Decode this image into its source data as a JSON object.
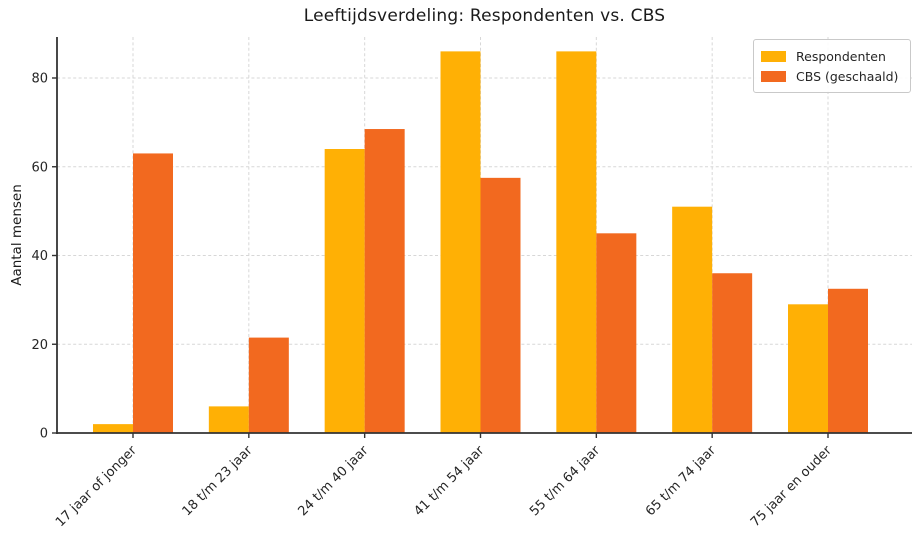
{
  "chart_data": {
    "type": "bar",
    "title": "Leeftijdsverdeling: Respondenten vs. CBS",
    "xlabel": "",
    "ylabel": "Aantal mensen",
    "categories": [
      "17 jaar of jonger",
      "18 t/m 23 jaar",
      "24 t/m 40 jaar",
      "41 t/m 54 jaar",
      "55 t/m 64 jaar",
      "65 t/m 74 jaar",
      "75 jaar en ouder"
    ],
    "series": [
      {
        "name": "Respondenten",
        "color": "#FFB005",
        "values": [
          2,
          6,
          64,
          86,
          86,
          51,
          29
        ]
      },
      {
        "name": "CBS (geschaald)",
        "color": "#F2691F",
        "values": [
          63,
          21.5,
          68.5,
          57.5,
          45,
          36,
          32.5
        ]
      }
    ],
    "yticks": [
      0,
      20,
      40,
      60,
      80
    ],
    "ylim": [
      0,
      89
    ],
    "grid": true,
    "grid_style": "dashed",
    "legend_position": "upper right",
    "x_tick_rotation_deg": 45
  }
}
